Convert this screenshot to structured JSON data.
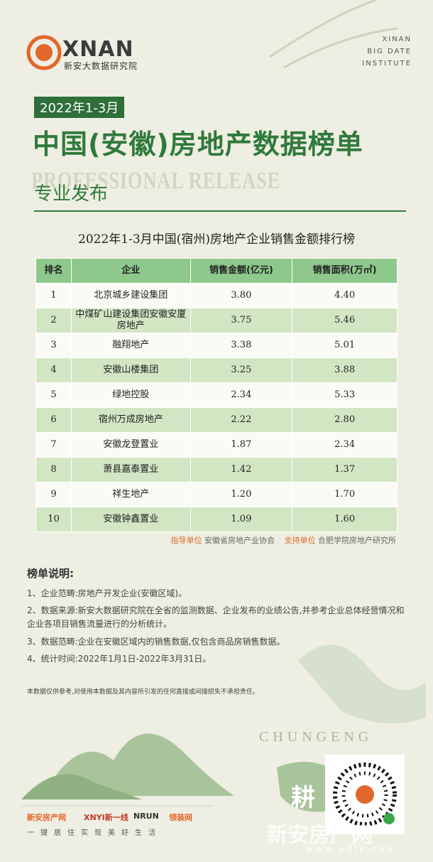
{
  "header": {
    "logo": "XNAN",
    "logo_cn": "新安大数据研究院",
    "institute": [
      "XINAN",
      "BIG DATE",
      "INSTITUTE"
    ],
    "period": "2022年1-3月",
    "title": "中国(安徽)房地产数据榜单",
    "watermark_text": "PROFESSIONAL RELEASE",
    "subtitle": "专业发布"
  },
  "table": {
    "title": "2022年1-3月中国(宿州)房地产企业销售金额排行榜",
    "columns": [
      "排名",
      "企业",
      "销售金额(亿元)",
      "销售面积(万㎡)"
    ],
    "rows": [
      [
        "1",
        "北京城乡建设集团",
        "3.80",
        "4.40"
      ],
      [
        "2",
        "中煤矿山建设集团安徽安厦房地产",
        "3.75",
        "5.46"
      ],
      [
        "3",
        "融翔地产",
        "3.38",
        "5.01"
      ],
      [
        "4",
        "安徽山楼集团",
        "3.25",
        "3.88"
      ],
      [
        "5",
        "绿地控股",
        "2.34",
        "5.33"
      ],
      [
        "6",
        "宿州万成房地产",
        "2.22",
        "2.80"
      ],
      [
        "7",
        "安徽龙登置业",
        "1.87",
        "2.34"
      ],
      [
        "8",
        "萧县嘉泰置业",
        "1.42",
        "1.37"
      ],
      [
        "9",
        "祥生地产",
        "1.20",
        "1.70"
      ],
      [
        "10",
        "安徽钟鑫置业",
        "1.09",
        "1.60"
      ]
    ],
    "guide_label": "指导单位",
    "guide": "安徽省房地产业协会",
    "support_label": "支持单位",
    "support": "合肥学院房地产研究所"
  },
  "notes": {
    "title": "榜单说明:",
    "items": [
      "1、企业范畴:房地产开发企业(安徽区域)。",
      "2、数据来源:新安大数据研究院在全省的监测数据、企业发布的业绩公告,并参考企业总体经营情况和企业各项目销售流量进行的分析统计。",
      "3、数据范畴:企业在安徽区域内的销售数据,仅包含商品房销售数据。",
      "4、统计时间:2022年1月1日-2022年3月31日。"
    ],
    "disclaimer": "本数据仅供参考,对使用本数据及其内容所引发的任何直接或间接损失不承担责任。"
  },
  "footer": {
    "decor": "CHUNGENG",
    "decor_char": "耕",
    "logos": [
      "新安房产网",
      "XNYI新一线",
      "NRUN",
      "领装网"
    ],
    "slogan": "一键居住实现美好生活",
    "watermark": "新安房产网",
    "watermark_url": "www.xdfc.com"
  }
}
